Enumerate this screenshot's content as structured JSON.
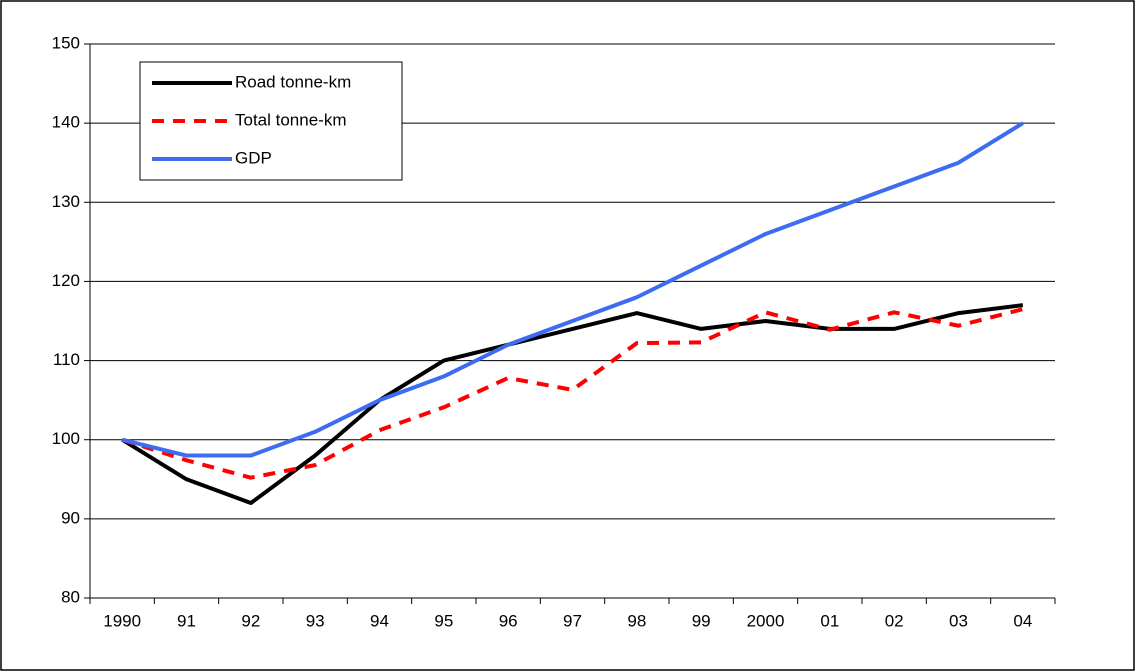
{
  "chart_data": {
    "type": "line",
    "categories": [
      "1990",
      "91",
      "92",
      "93",
      "94",
      "95",
      "96",
      "97",
      "98",
      "99",
      "2000",
      "01",
      "02",
      "03",
      "04"
    ],
    "series": [
      {
        "name": "Road tonne-km",
        "color": "#000000",
        "dash": false,
        "values": [
          100,
          95,
          92,
          98,
          105,
          110,
          112,
          114,
          116,
          114,
          115,
          114,
          114,
          116,
          117
        ]
      },
      {
        "name": "Total tonne-km",
        "color": "#ff0000",
        "dash": true,
        "values": [
          100,
          97.4,
          95.2,
          96.8,
          101.2,
          104.1,
          107.8,
          106.3,
          112.2,
          112.3,
          116.1,
          113.9,
          116.1,
          114.4,
          116.5
        ]
      },
      {
        "name": "GDP",
        "color": "#3d6cf0",
        "dash": false,
        "values": [
          100,
          98,
          98,
          101,
          105,
          108,
          112,
          115,
          118,
          122,
          126,
          129,
          132,
          135,
          140
        ]
      }
    ],
    "ylim": [
      80,
      150
    ],
    "yticks": [
      80,
      90,
      100,
      110,
      120,
      130,
      140,
      150
    ],
    "grid": true,
    "legend": "top-left"
  }
}
